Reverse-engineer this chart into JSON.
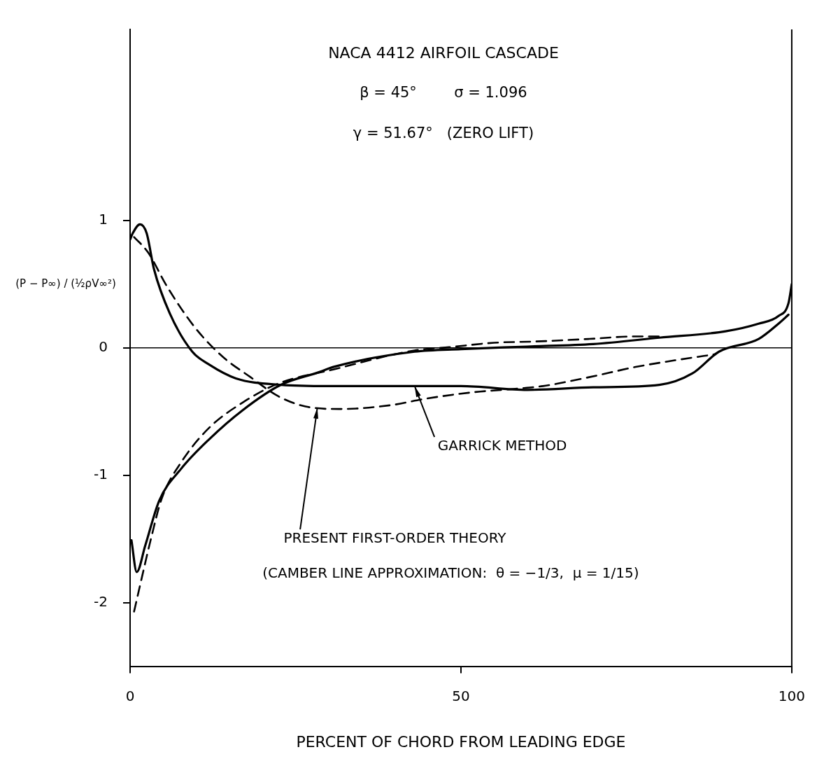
{
  "chart_data": {
    "type": "line",
    "title": "NACA 4412 AIRFOIL CASCADE",
    "subtitle": "β = 45°        σ = 1.096\nγ = 51.67°   (ZERO LIFT)",
    "xlabel": "PERCENT OF CHORD FROM LEADING EDGE",
    "ylabel": "(P − P∞) / (½ρV∞²)",
    "xlim": [
      0,
      100
    ],
    "xticks": [
      0,
      50,
      100
    ],
    "ylim": [
      -2.5,
      2.5
    ],
    "yticks": [
      -2,
      -1,
      0,
      1
    ],
    "grid": false,
    "legend": false,
    "marker": "none",
    "ref_lines": [
      {
        "axis": "y",
        "value": 0,
        "color": "#000000"
      }
    ],
    "annotations": [
      {
        "text": "GARRICK METHOD",
        "x": 43,
        "y": -0.3
      },
      {
        "text": "PRESENT FIRST-ORDER THEORY",
        "x": 28.3,
        "y": -0.47
      },
      "(CAMBER LINE APPROXIMATION:  θ = −1/3,  μ = 1/15)"
    ],
    "series": [
      {
        "color": "#000000",
        "line_style": "solid",
        "x": [
          0,
          0.4,
          1.5,
          2.5,
          3.6,
          6,
          9.4,
          11.9,
          16,
          22.8,
          30,
          40,
          50,
          60,
          70,
          80,
          85,
          89,
          95,
          98,
          99.5
        ],
        "values": [
          0.85,
          0.9,
          0.97,
          0.9,
          0.62,
          0.27,
          -0.03,
          -0.13,
          -0.24,
          -0.29,
          -0.3,
          -0.3,
          -0.3,
          -0.33,
          -0.31,
          -0.29,
          -0.2,
          -0.03,
          0.07,
          0.19,
          0.26
        ]
      },
      {
        "color": "#000000",
        "line_style": "solid",
        "x": [
          0.2,
          1,
          2.3,
          4.4,
          7.7,
          11.9,
          17,
          22.8,
          28.6,
          30.7,
          43,
          50,
          60,
          70,
          80,
          90,
          95,
          98,
          99.5,
          100
        ],
        "values": [
          -1.51,
          -1.76,
          -1.55,
          -1.2,
          -0.95,
          -0.72,
          -0.49,
          -0.29,
          -0.19,
          -0.15,
          -0.03,
          -0.01,
          0.01,
          0.03,
          0.08,
          0.13,
          0.19,
          0.25,
          0.35,
          0.5
        ]
      },
      {
        "color": "#000000",
        "line_style": "dashed",
        "x": [
          0.6,
          2.7,
          5.6,
          9.8,
          14,
          18.2,
          22.4,
          26.5,
          31.8,
          39.4,
          44.6,
          51.6,
          58.6,
          62.4,
          69.4,
          76.4,
          83.3,
          88.5
        ],
        "values": [
          0.87,
          0.75,
          0.48,
          0.16,
          -0.07,
          -0.23,
          -0.38,
          -0.46,
          -0.48,
          -0.45,
          -0.4,
          -0.35,
          -0.32,
          -0.3,
          -0.23,
          -0.15,
          -0.09,
          -0.05
        ]
      },
      {
        "color": "#000000",
        "line_style": "dashed",
        "x": [
          0.6,
          1.7,
          3.1,
          4.8,
          7.7,
          11.9,
          17.3,
          22.4,
          30.7,
          43,
          48.2,
          55,
          61.3,
          69.4,
          76.4,
          80.6
        ],
        "values": [
          -2.07,
          -1.82,
          -1.51,
          -1.18,
          -0.9,
          -0.63,
          -0.42,
          -0.28,
          -0.17,
          -0.02,
          0.005,
          0.04,
          0.05,
          0.07,
          0.09,
          0.09
        ]
      }
    ]
  }
}
